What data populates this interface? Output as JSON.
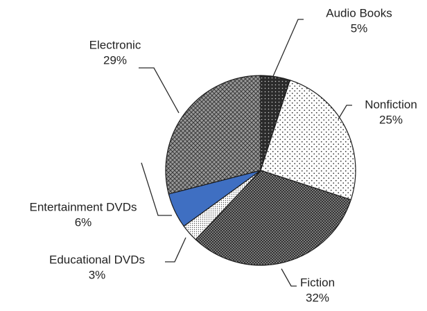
{
  "chart_data": {
    "type": "pie",
    "title": "",
    "start_angle_deg": 0,
    "direction": "clockwise",
    "slices": [
      {
        "label": "Audio Books",
        "value": 5,
        "value_label": "5%",
        "color": "#2b2b2b",
        "pattern": "dark-dots"
      },
      {
        "label": "Nonfiction",
        "value": 25,
        "value_label": "25%",
        "color": "#ffffff",
        "pattern": "sparse-dots"
      },
      {
        "label": "Fiction",
        "value": 32,
        "value_label": "32%",
        "color": "#3a3a3a",
        "pattern": "dense-dark-dots"
      },
      {
        "label": "Educational DVDs",
        "value": 3,
        "value_label": "3%",
        "color": "#ffffff",
        "pattern": "fine-dots"
      },
      {
        "label": "Entertainment DVDs",
        "value": 6,
        "value_label": "6%",
        "color": "#3f6fc2",
        "pattern": "solid"
      },
      {
        "label": "Electronic",
        "value": 29,
        "value_label": "29%",
        "color": "#8a8a8a",
        "pattern": "crosshatch"
      }
    ],
    "legend": "none",
    "labels": "outside-with-leaders"
  }
}
